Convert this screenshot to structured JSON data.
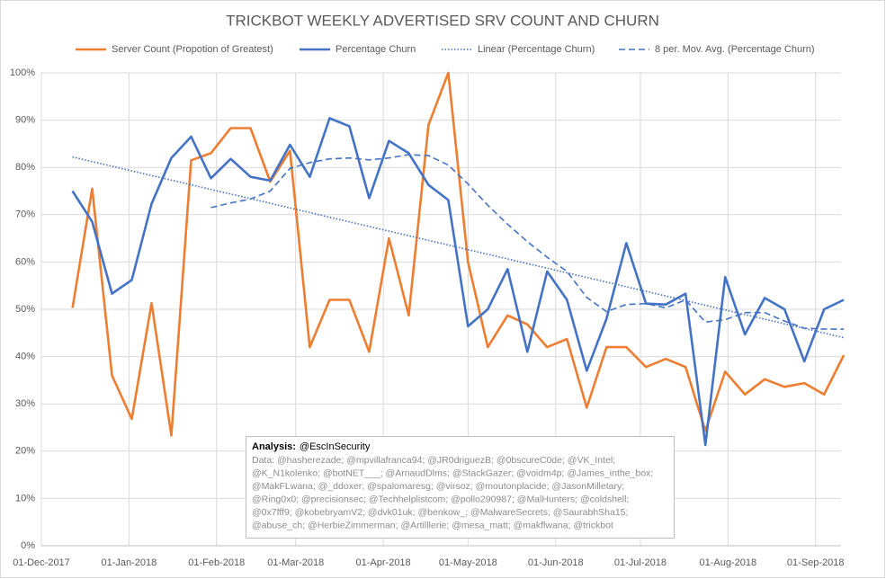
{
  "chart_data": {
    "type": "line",
    "title": "TRICKBOT WEEKLY ADVERTISED SRV COUNT AND CHURN",
    "x": [
      "2017-12-12",
      "2017-12-19",
      "2017-12-26",
      "2018-01-02",
      "2018-01-09",
      "2018-01-16",
      "2018-01-23",
      "2018-01-30",
      "2018-02-06",
      "2018-02-13",
      "2018-02-20",
      "2018-02-27",
      "2018-03-06",
      "2018-03-13",
      "2018-03-20",
      "2018-03-27",
      "2018-04-03",
      "2018-04-10",
      "2018-04-17",
      "2018-04-24",
      "2018-05-01",
      "2018-05-08",
      "2018-05-15",
      "2018-05-22",
      "2018-05-29",
      "2018-06-05",
      "2018-06-12",
      "2018-06-19",
      "2018-06-26",
      "2018-07-03",
      "2018-07-10",
      "2018-07-17",
      "2018-07-24",
      "2018-07-31",
      "2018-08-07",
      "2018-08-14",
      "2018-08-21",
      "2018-08-28",
      "2018-09-04",
      "2018-09-11"
    ],
    "series": [
      {
        "name": "Server Count (Propotion of Greatest)",
        "color": "#ed7d31",
        "style": "solid",
        "values": [
          50.3,
          75.5,
          36,
          26.8,
          51.3,
          23.3,
          81.5,
          83,
          88.3,
          88.3,
          77,
          83.5,
          42,
          52,
          52,
          41,
          65,
          48.7,
          89,
          100,
          60,
          42,
          48.7,
          46.8,
          42,
          43.7,
          29.2,
          42,
          42,
          37.8,
          39.5,
          37.8,
          24.3,
          36.8,
          32,
          35.2,
          33.6,
          34.4,
          32,
          40.3
        ]
      },
      {
        "name": "Percentage Churn",
        "color": "#4472c4",
        "style": "solid",
        "values": [
          75,
          68.5,
          53.3,
          56.2,
          72.3,
          82,
          86.5,
          77.7,
          81.8,
          78,
          77.2,
          84.8,
          78,
          90.4,
          88.7,
          73.5,
          85.6,
          83,
          76.3,
          73.1,
          46.4,
          50,
          58.5,
          41,
          58,
          52,
          37,
          48,
          64,
          51.2,
          51,
          53.3,
          21.3,
          56.8,
          44.7,
          52.4,
          50,
          39,
          50,
          52
        ]
      },
      {
        "name": "Linear (Percentage Churn)",
        "color": "#4472c4",
        "style": "dotted",
        "x": [
          "2017-12-12",
          "2018-09-11"
        ],
        "values": [
          82.2,
          44
        ]
      },
      {
        "name": "8 per. Mov. Avg. (Percentage Churn)",
        "color": "#4472c4",
        "style": "dashed",
        "values": [
          null,
          null,
          null,
          null,
          null,
          null,
          null,
          71.5,
          72.5,
          73.3,
          75,
          79.8,
          81,
          81.8,
          82,
          81.6,
          82,
          82.7,
          82.5,
          80.5,
          76.5,
          72,
          68,
          64.3,
          61,
          58,
          52.5,
          49.5,
          51,
          51.2,
          50.3,
          52,
          47.3,
          47.8,
          49.3,
          49.3,
          47.5,
          46,
          45.8,
          45.8
        ]
      }
    ],
    "xlim": [
      "2017-12-01",
      "2018-09-10"
    ],
    "xticks": [
      {
        "value": "2017-12-01",
        "label": "01-Dec-2017"
      },
      {
        "value": "2018-01-01",
        "label": "01-Jan-2018"
      },
      {
        "value": "2018-02-01",
        "label": "01-Feb-2018"
      },
      {
        "value": "2018-03-01",
        "label": "01-Mar-2018"
      },
      {
        "value": "2018-04-01",
        "label": "01-Apr-2018"
      },
      {
        "value": "2018-05-01",
        "label": "01-May-2018"
      },
      {
        "value": "2018-06-01",
        "label": "01-Jun-2018"
      },
      {
        "value": "2018-07-01",
        "label": "01-Jul-2018"
      },
      {
        "value": "2018-08-01",
        "label": "01-Aug-2018"
      },
      {
        "value": "2018-09-01",
        "label": "01-Sep-2018"
      }
    ],
    "ylim": [
      0,
      100
    ],
    "yticks": [
      {
        "value": 0,
        "label": "0%"
      },
      {
        "value": 10,
        "label": "10%"
      },
      {
        "value": 20,
        "label": "20%"
      },
      {
        "value": 30,
        "label": "30%"
      },
      {
        "value": 40,
        "label": "40%"
      },
      {
        "value": 50,
        "label": "50%"
      },
      {
        "value": 60,
        "label": "60%"
      },
      {
        "value": 70,
        "label": "70%"
      },
      {
        "value": 80,
        "label": "80%"
      },
      {
        "value": 90,
        "label": "90%"
      },
      {
        "value": 100,
        "label": "100%"
      }
    ],
    "grid": true,
    "legend": "top",
    "annotation": {
      "label": "Analysis:",
      "author": "@EscInSecurity",
      "lines": [
        "Data: @hasherezade; @mpvillafranca94; @JR0driguezB; @0bscureC0de; @VK_Intel;",
        "@K_N1kolenko; @botNET___; @ArnaudDlms; @StackGazer; @voidm4p; @James_inthe_box;",
        "@MakFLwana; @_ddoxer; @spalomaresg; @virsoz; @moutonplacide; @JasonMilletary;",
        "@Ring0x0; @precisionsec; @Techhelplistcom; @pollo290987; @MalHunters; @coldshell;",
        "@0x7fff9; @kobebryamV2; @dvk01uk; @benkow_; @MalwareSecrets; @SaurabhSha15;",
        "@abuse_ch; @HerbieZimmerman; @Artilllerie; @mesa_matt; @makflwana; @trickbot"
      ]
    }
  }
}
